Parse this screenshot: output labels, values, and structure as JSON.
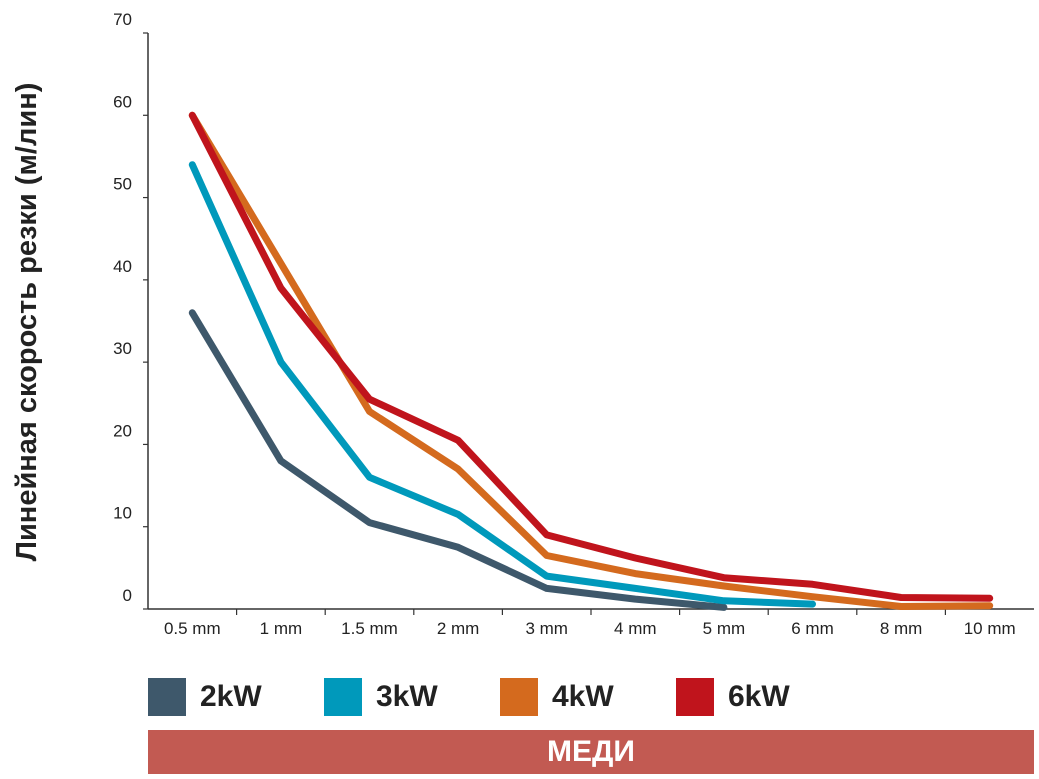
{
  "chart_data": {
    "type": "line",
    "title": "",
    "xlabel": "",
    "ylabel": "Линейная скорость резки (м/лин)",
    "categories": [
      "0.5 mm",
      "1 mm",
      "1.5 mm",
      "2 mm",
      "3 mm",
      "4 mm",
      "5 mm",
      "6 mm",
      "8 mm",
      "10 mm"
    ],
    "yticks": [
      "0",
      "10",
      "20",
      "30",
      "40",
      "50",
      "60",
      "70"
    ],
    "ylim": [
      0,
      70
    ],
    "grid": false,
    "legend_position": "bottom",
    "series": [
      {
        "name": "2kW",
        "color": "#3e586b",
        "values": [
          36,
          18,
          10.5,
          7.5,
          2.5,
          1.2,
          0.2,
          null,
          null,
          null
        ]
      },
      {
        "name": "3kW",
        "color": "#0099bb",
        "values": [
          54,
          30,
          16,
          11.5,
          4,
          2.5,
          1,
          0.6,
          null,
          null
        ]
      },
      {
        "name": "4kW",
        "color": "#d46a1e",
        "values": [
          60,
          42,
          24,
          17,
          6.5,
          4.3,
          2.8,
          1.5,
          0.3,
          0.4
        ]
      },
      {
        "name": "6kW",
        "color": "#c0141c",
        "values": [
          60,
          39,
          25.5,
          20.5,
          9,
          6.2,
          3.8,
          3,
          1.4,
          1.3
        ]
      }
    ]
  },
  "banner": {
    "label": "МЕДИ",
    "color": "#c25a52"
  }
}
